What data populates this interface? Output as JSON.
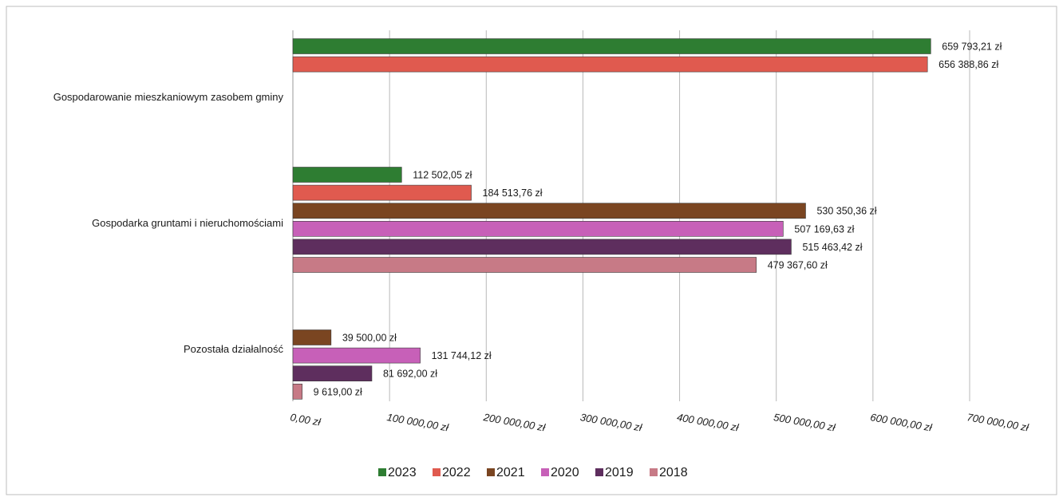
{
  "chart_data": {
    "type": "bar",
    "orientation": "horizontal",
    "title": "",
    "xlabel": "",
    "ylabel": "",
    "xlim": [
      0,
      700000
    ],
    "x_ticks": [
      0,
      100000,
      200000,
      300000,
      400000,
      500000,
      600000,
      700000
    ],
    "x_tick_labels": [
      "0,00 zł",
      "100 000,00 zł",
      "200 000,00 zł",
      "300 000,00 zł",
      "400 000,00 zł",
      "500 000,00 zł",
      "600 000,00 zł",
      "700 000,00 zł"
    ],
    "grid": true,
    "legend_position": "bottom",
    "categories": [
      "Gospodarowanie mieszkaniowym zasobem gminy",
      "Gospodarka gruntami i nieruchomościami",
      "Pozostała działalność"
    ],
    "series": [
      {
        "name": "2023",
        "color": "#2e7d32",
        "values": [
          659793.21,
          112502.05,
          null
        ]
      },
      {
        "name": "2022",
        "color": "#e05a4f",
        "values": [
          656388.86,
          184513.76,
          null
        ]
      },
      {
        "name": "2021",
        "color": "#7a4521",
        "values": [
          null,
          530350.36,
          39500.0
        ]
      },
      {
        "name": "2020",
        "color": "#c760b8",
        "values": [
          null,
          507169.63,
          131744.12
        ]
      },
      {
        "name": "2019",
        "color": "#5e2e5e",
        "values": [
          null,
          515463.42,
          81692.0
        ]
      },
      {
        "name": "2018",
        "color": "#c77a86",
        "values": [
          null,
          479367.6,
          9619.0
        ]
      }
    ],
    "data_labels": [
      [
        "659 793,21 zł",
        "656 388,86 zł",
        "",
        "",
        "",
        ""
      ],
      [
        "112 502,05 zł",
        "184 513,76 zł",
        "530 350,36 zł",
        "507 169,63 zł",
        "515 463,42 zł",
        "479 367,60 zł"
      ],
      [
        "",
        "",
        "39 500,00 zł",
        "131 744,12 zł",
        "81 692,00 zł",
        "9 619,00 zł"
      ]
    ]
  }
}
